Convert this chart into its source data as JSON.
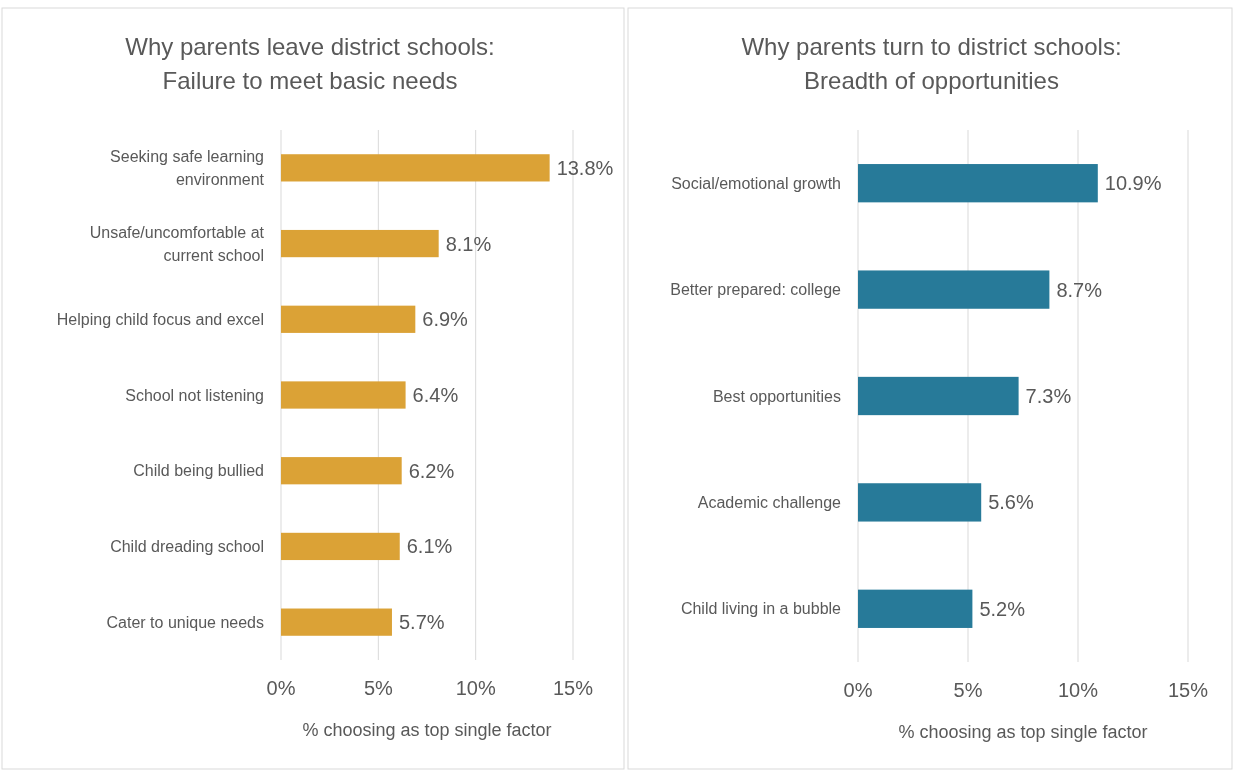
{
  "chart_data": [
    {
      "type": "bar",
      "orientation": "horizontal",
      "title": "Why parents leave district schools:\nFailure to meet basic needs",
      "xlabel": "% choosing as top single factor",
      "categories": [
        "Seeking safe learning environment",
        "Unsafe/uncomfortable at current school",
        "Helping child focus and excel",
        "School not listening",
        "Child being bullied",
        "Child dreading school",
        "Cater to unique needs"
      ],
      "values": [
        13.8,
        8.1,
        6.9,
        6.4,
        6.2,
        6.1,
        5.7
      ],
      "value_labels": [
        "13.8%",
        "8.1%",
        "6.9%",
        "6.4%",
        "6.2%",
        "6.1%",
        "5.7%"
      ],
      "color": "#dba236",
      "xlim": [
        0,
        15
      ],
      "xticks": [
        {
          "value": 0,
          "label": "0%"
        },
        {
          "value": 5,
          "label": "5%"
        },
        {
          "value": 10,
          "label": "10%"
        },
        {
          "value": 15,
          "label": "15%"
        }
      ],
      "grid": "x"
    },
    {
      "type": "bar",
      "orientation": "horizontal",
      "title": "Why parents turn to district schools:\nBreadth of opportunities",
      "xlabel": "% choosing as top single factor",
      "categories": [
        "Social/emotional growth",
        "Better prepared: college",
        "Best opportunities",
        "Academic challenge",
        "Child living in a bubble"
      ],
      "values": [
        10.9,
        8.7,
        7.3,
        5.6,
        5.2
      ],
      "value_labels": [
        "10.9%",
        "8.7%",
        "7.3%",
        "5.6%",
        "5.2%"
      ],
      "color": "#277a99",
      "xlim": [
        0,
        15
      ],
      "xticks": [
        {
          "value": 0,
          "label": "0%"
        },
        {
          "value": 5,
          "label": "5%"
        },
        {
          "value": 10,
          "label": "10%"
        },
        {
          "value": 15,
          "label": "15%"
        }
      ],
      "grid": "x"
    }
  ]
}
